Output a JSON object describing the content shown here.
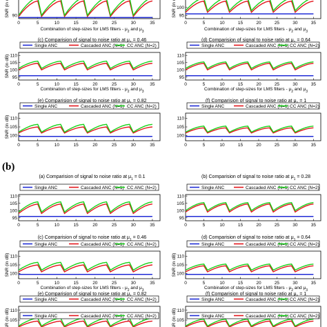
{
  "figure": {
    "section_label": "(b)"
  },
  "legend": {
    "entries": [
      "Single ANC",
      "Cascaded ANC (N=1)",
      "CC ANC (N=2)"
    ],
    "colors": [
      "#1f2bd6",
      "#e3151b",
      "#19d119"
    ]
  },
  "chart_data": [
    {
      "id": "a1",
      "type": "line",
      "title": "",
      "xlabel": "Combination of step-sizes for LMS filters - μ2 and μ3",
      "ylabel": "SNR (in dB)",
      "xlim": [
        0,
        37
      ],
      "xticks": [
        0,
        5,
        10,
        15,
        20,
        25,
        30,
        35
      ],
      "ylim": [
        87,
        110
      ],
      "yticks": [
        90
      ],
      "legend": false,
      "single": 88,
      "seg_start": [
        89,
        90
      ],
      "seg_end": [
        103,
        106
      ]
    },
    {
      "id": "b1",
      "type": "line",
      "title": "",
      "xlabel": "Combination of step-sizes for LMS filters - μ2 and μ3",
      "ylabel": "SNR (in dB)",
      "xlim": [
        0,
        37
      ],
      "xticks": [
        0,
        5,
        10,
        15,
        20,
        25,
        30,
        35
      ],
      "ylim": [
        93,
        109
      ],
      "yticks": [
        95,
        100
      ],
      "legend": false,
      "single": 96,
      "seg_start": [
        97,
        98
      ],
      "seg_end": [
        104,
        106
      ]
    },
    {
      "id": "c1",
      "type": "line",
      "title": "(c) Comparision of signal to noise ratio at μ1 = 0.46",
      "xlabel": "Combination of step-sizes for LMS filters - μ2 and μ3",
      "ylabel": "SNR (in dB)",
      "xlim": [
        0,
        37
      ],
      "xticks": [
        0,
        5,
        10,
        15,
        20,
        25,
        30,
        35
      ],
      "ylim": [
        93,
        112
      ],
      "yticks": [
        95,
        100,
        105,
        110
      ],
      "legend": true,
      "single": 96,
      "seg_start": [
        100,
        101
      ],
      "seg_end": [
        104.5,
        106
      ]
    },
    {
      "id": "d1",
      "type": "line",
      "title": "(d) Comparision of signal to noise ratio at μ1 = 0.64",
      "xlabel": "Combination of step-sizes for LMS filters - μ2 and μ3",
      "ylabel": "",
      "xlim": [
        0,
        37
      ],
      "xticks": [
        0,
        5,
        10,
        15,
        20,
        25,
        30,
        35
      ],
      "ylim": [
        93,
        112
      ],
      "yticks": [
        95,
        100,
        105,
        110
      ],
      "legend": true,
      "single": 96,
      "seg_start": [
        100,
        101
      ],
      "seg_end": [
        104.5,
        105.5
      ]
    },
    {
      "id": "e1",
      "type": "line",
      "title": "(e) Comparision of signal to noise ratio at μ1 = 0.82",
      "xlabel": "",
      "ylabel": "SNR (in dB)",
      "xlim": [
        0,
        37
      ],
      "xticks": [
        0,
        5,
        10,
        15,
        20,
        25,
        30,
        35
      ],
      "ylim": [
        97,
        113
      ],
      "yticks": [
        100,
        105,
        110
      ],
      "legend": true,
      "single": 99.5,
      "seg_start": [
        101.5,
        102
      ],
      "seg_end": [
        105,
        106.5
      ]
    },
    {
      "id": "f1",
      "type": "line",
      "title": "(f) Comparision of signal to noise ratio at μ1 = 1",
      "xlabel": "",
      "ylabel": "",
      "xlim": [
        0,
        37
      ],
      "xticks": [
        0,
        5,
        10,
        15,
        20,
        25,
        30,
        35
      ],
      "ylim": [
        97,
        113
      ],
      "yticks": [
        100,
        105,
        110
      ],
      "legend": true,
      "single": 99.5,
      "seg_start": [
        101.5,
        102
      ],
      "seg_end": [
        104.5,
        105.5
      ]
    },
    {
      "id": "a2",
      "type": "line",
      "title": "(a) Comparision of signal to noise ratio at μ1 = 0.1",
      "xlabel": "",
      "ylabel": "",
      "xlim": [
        0,
        37
      ],
      "xticks": [
        0,
        5,
        10,
        15,
        20,
        25,
        30,
        35
      ],
      "ylim": [
        93,
        111
      ],
      "yticks": [
        95,
        100,
        105,
        110
      ],
      "legend": true,
      "single": 96,
      "seg_start": [
        98,
        99
      ],
      "seg_end": [
        104.5,
        106
      ]
    },
    {
      "id": "b2",
      "type": "line",
      "title": "(b) Comparision of signal to noise ratio at μ1 = 0.28",
      "xlabel": "",
      "ylabel": "",
      "xlim": [
        0,
        37
      ],
      "xticks": [
        0,
        5,
        10,
        15,
        20,
        25,
        30,
        35
      ],
      "ylim": [
        93,
        111
      ],
      "yticks": [
        95,
        100,
        105,
        110
      ],
      "legend": true,
      "single": 96,
      "seg_start": [
        99,
        100
      ],
      "seg_end": [
        104.5,
        105.5
      ]
    },
    {
      "id": "c2",
      "type": "line",
      "title": "(c) Comparision of signal to noise ratio at μ1 = 0.46",
      "xlabel": "Combination of step-sizes for LMS filters - μ2 and μ3",
      "ylabel": "SNR (in dB)",
      "xlim": [
        0,
        37
      ],
      "xticks": [
        0,
        5,
        10,
        15,
        20,
        25,
        30,
        35
      ],
      "ylim": [
        97,
        113
      ],
      "yticks": [
        100,
        105,
        110
      ],
      "legend": true,
      "single": 99.5,
      "seg_start": [
        101,
        102
      ],
      "seg_end": [
        105,
        106.5
      ]
    },
    {
      "id": "d2",
      "type": "line",
      "title": "(d) Comparision of signal to noise ratio at μ1 = 0.64",
      "xlabel": "Combination of step-sizes for LMS filters - μ2 and μ3",
      "ylabel": "SNR (in dB)",
      "xlim": [
        0,
        37
      ],
      "xticks": [
        0,
        5,
        10,
        15,
        20,
        25,
        30,
        35
      ],
      "ylim": [
        97,
        113
      ],
      "yticks": [
        100,
        105,
        110
      ],
      "legend": true,
      "single": 99.5,
      "seg_start": [
        101,
        102
      ],
      "seg_end": [
        104.5,
        105.5
      ]
    },
    {
      "id": "e2",
      "type": "line",
      "title": "(e) Comparision of signal to noise ratio at μ1 = 0.82",
      "xlabel": "Combination of step-sizes for LMS filters - μ2 and μ3",
      "ylabel": "SNR (in dB)",
      "xlim": [
        0,
        37
      ],
      "xticks": [
        0,
        5,
        10,
        15,
        20,
        25,
        30,
        35
      ],
      "ylim": [
        98,
        112
      ],
      "yticks": [
        100,
        105,
        110
      ],
      "legend": true,
      "single": 99.5,
      "seg_start": [
        101.5,
        102
      ],
      "seg_end": [
        104.5,
        106
      ]
    },
    {
      "id": "f2",
      "type": "line",
      "title": "(f) Comparision of signal to noise ratio at μ1 = 1",
      "xlabel": "Combination of step-sizes for LMS filters - μ2 and μ3",
      "ylabel": "SNR (in dB)",
      "xlim": [
        0,
        37
      ],
      "xticks": [
        0,
        5,
        10,
        15,
        20,
        25,
        30,
        35
      ],
      "ylim": [
        98,
        112
      ],
      "yticks": [
        100,
        105,
        110
      ],
      "legend": true,
      "single": 99.5,
      "seg_start": [
        101.5,
        102
      ],
      "seg_end": [
        104.5,
        105.5
      ]
    },
    {
      "id": "g2",
      "type": "line",
      "title": "",
      "xlabel": "",
      "ylabel": "",
      "xlim": [
        0,
        37
      ],
      "xticks": [],
      "ylim": [
        0,
        1
      ],
      "yticks": [],
      "legend": true,
      "partial": true
    },
    {
      "id": "h2",
      "type": "line",
      "title": "",
      "xlabel": "",
      "ylabel": "",
      "xlim": [
        0,
        37
      ],
      "xticks": [],
      "ylim": [
        0,
        1
      ],
      "yticks": [],
      "legend": true,
      "partial": true
    }
  ]
}
